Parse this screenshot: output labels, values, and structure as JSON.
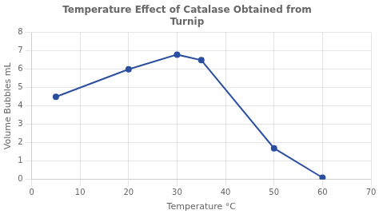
{
  "chart_data": {
    "type": "line",
    "title": "Temperature Effect of Catalase Obtained from\nTurnip",
    "x_label": "Temperature °C",
    "y_label": "Volume Bubbles mL",
    "x": [
      5,
      20,
      30,
      35,
      50,
      60
    ],
    "values": [
      4.5,
      6.0,
      6.8,
      6.5,
      1.7,
      0.1
    ],
    "color": "#2b4f9e",
    "marker": "circle",
    "xlim": [
      0,
      70
    ],
    "ylim": [
      0,
      8
    ],
    "xticks": [
      0,
      10,
      20,
      30,
      40,
      50,
      60,
      70
    ],
    "yticks": [
      0,
      1,
      2,
      3,
      4,
      5,
      6,
      7,
      8
    ],
    "grid": true
  }
}
